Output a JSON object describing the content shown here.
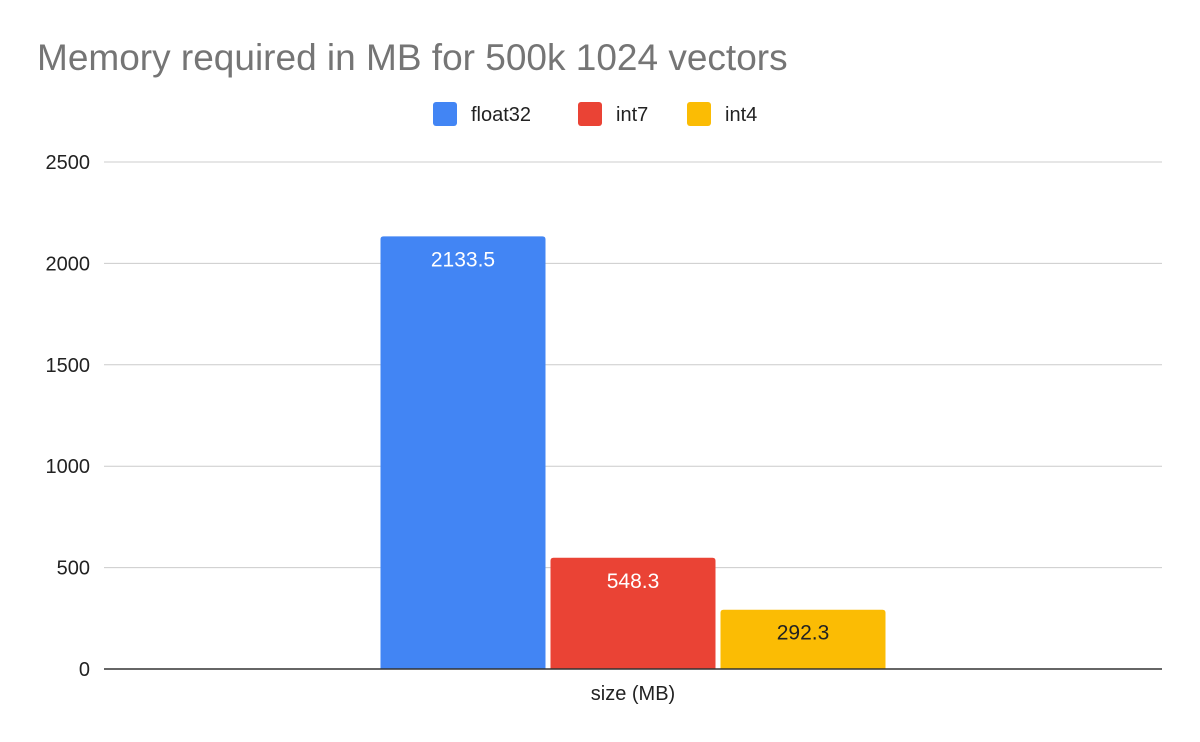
{
  "chart_data": {
    "type": "bar",
    "title": "Memory required in MB for 500k 1024 vectors",
    "categories": [
      "size (MB)"
    ],
    "series": [
      {
        "name": "float32",
        "values": [
          2133.5
        ],
        "color": "#4285f4",
        "label_color": "#ffffff"
      },
      {
        "name": "int7",
        "values": [
          548.3
        ],
        "color": "#ea4335",
        "label_color": "#ffffff"
      },
      {
        "name": "int4",
        "values": [
          292.3
        ],
        "color": "#fbbc04",
        "label_color": "#222222"
      }
    ],
    "data_labels": [
      "2133.5",
      "548.3",
      "292.3"
    ],
    "xlabel": "",
    "ylabel": "",
    "ylim": [
      0,
      2500
    ],
    "yticks": [
      "0",
      "500",
      "1000",
      "1500",
      "2000",
      "2500"
    ],
    "legend_position": "top",
    "grid": true
  }
}
